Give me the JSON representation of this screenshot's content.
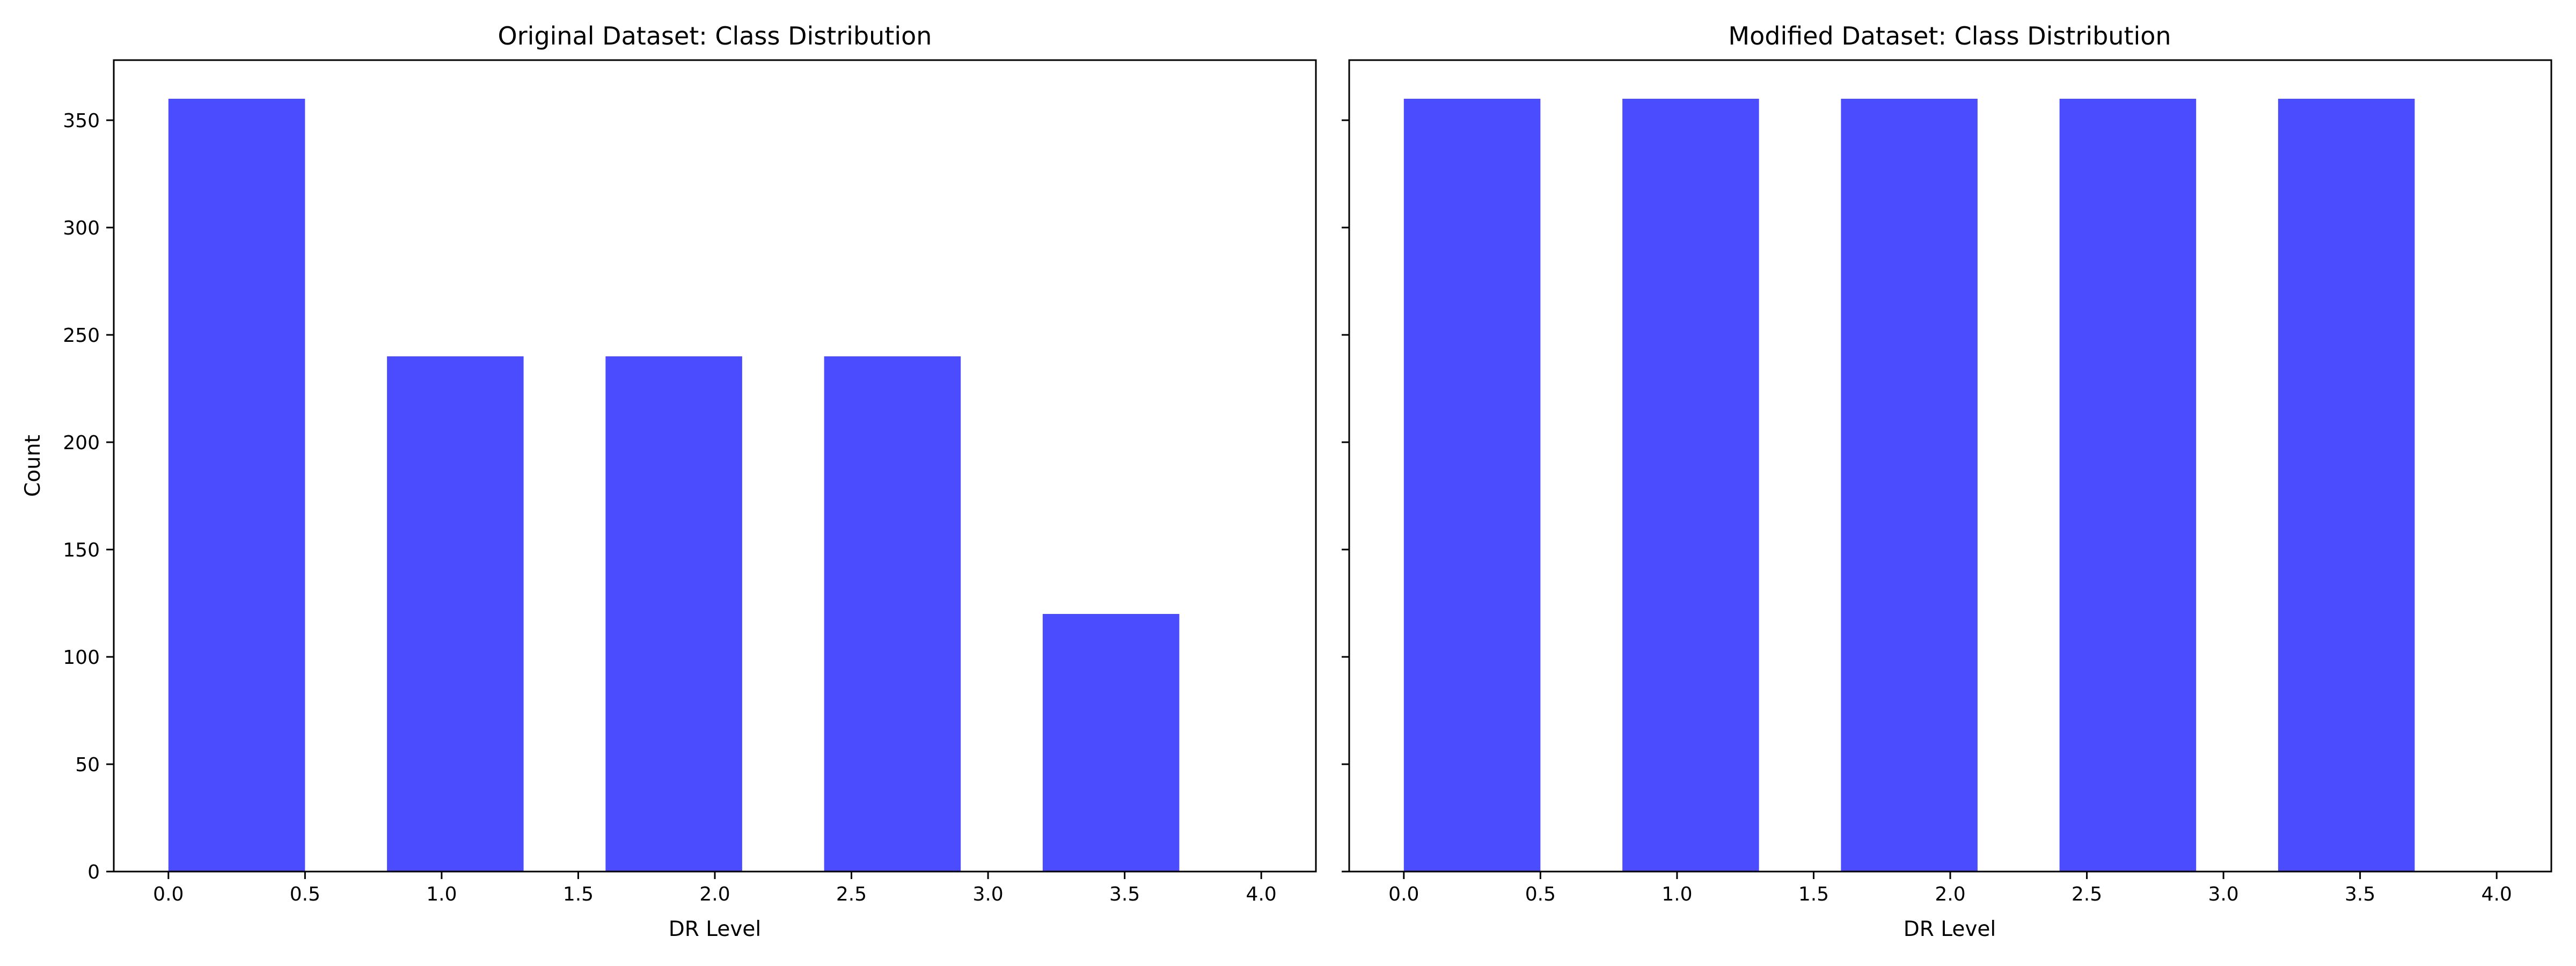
{
  "chart_data": [
    {
      "type": "bar",
      "title": "Original Dataset: Class Distribution",
      "xlabel": "DR Level",
      "ylabel": "Count",
      "x": [
        0.0,
        0.8,
        1.6,
        2.4,
        3.2
      ],
      "bar_width": 0.5,
      "values": [
        360,
        240,
        240,
        240,
        120
      ],
      "xlim": [
        -0.2,
        4.2
      ],
      "ylim": [
        0,
        378
      ],
      "xticks": [
        0.0,
        0.5,
        1.0,
        1.5,
        2.0,
        2.5,
        3.0,
        3.5,
        4.0
      ],
      "xtick_labels": [
        "0.0",
        "0.5",
        "1.0",
        "1.5",
        "2.0",
        "2.5",
        "3.0",
        "3.5",
        "4.0"
      ],
      "yticks": [
        0,
        50,
        100,
        150,
        200,
        250,
        300,
        350
      ],
      "ytick_labels": [
        "0",
        "50",
        "100",
        "150",
        "200",
        "250",
        "300",
        "350"
      ],
      "grid": false,
      "bar_color": "#4c4cff"
    },
    {
      "type": "bar",
      "title": "Modified Dataset: Class Distribution",
      "xlabel": "DR Level",
      "ylabel": "",
      "x": [
        0.0,
        0.8,
        1.6,
        2.4,
        3.2
      ],
      "bar_width": 0.5,
      "values": [
        360,
        360,
        360,
        360,
        360
      ],
      "xlim": [
        -0.2,
        4.2
      ],
      "ylim": [
        0,
        378
      ],
      "xticks": [
        0.0,
        0.5,
        1.0,
        1.5,
        2.0,
        2.5,
        3.0,
        3.5,
        4.0
      ],
      "xtick_labels": [
        "0.0",
        "0.5",
        "1.0",
        "1.5",
        "2.0",
        "2.5",
        "3.0",
        "3.5",
        "4.0"
      ],
      "yticks": [
        0,
        50,
        100,
        150,
        200,
        250,
        300,
        350
      ],
      "ytick_labels": [
        "",
        "",
        "",
        "",
        "",
        "",
        "",
        ""
      ],
      "grid": false,
      "bar_color": "#4c4cff"
    }
  ]
}
